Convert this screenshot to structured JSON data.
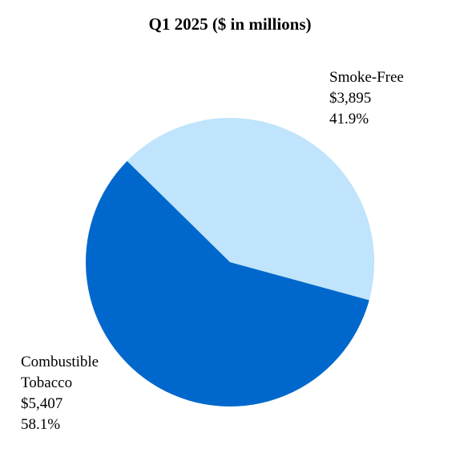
{
  "chart_data": {
    "type": "pie",
    "title": "Q1 2025 ($ in millions)",
    "categories": [
      "Smoke-Free",
      "Combustible Tobacco"
    ],
    "values": [
      3895,
      5407
    ],
    "value_labels": [
      "$3,895",
      "$5,407"
    ],
    "percentages": [
      41.9,
      58.1
    ],
    "percentage_labels": [
      "41.9%",
      "58.1%"
    ],
    "colors": [
      "#bfe4fb",
      "#0068cc"
    ]
  }
}
